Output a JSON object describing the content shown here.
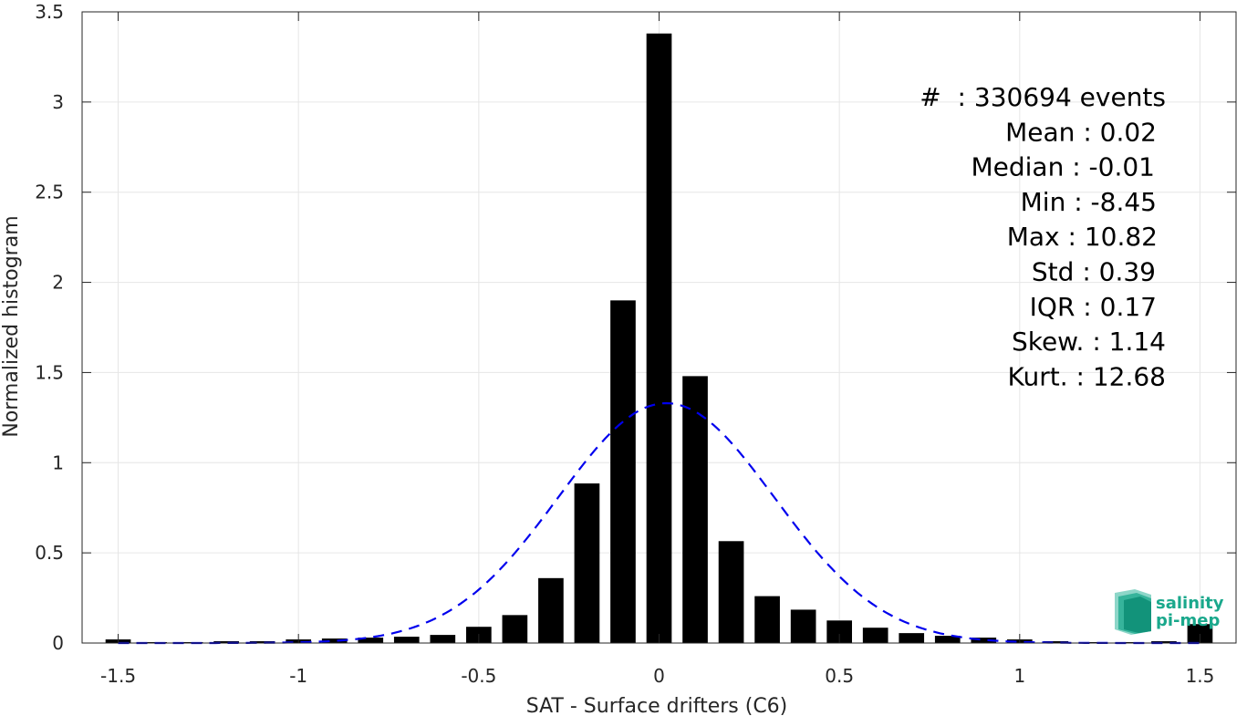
{
  "chart_data": {
    "type": "bar",
    "xlabel": "SAT - Surface drifters (C6)",
    "ylabel": "Normalized histogram",
    "xlim": [
      -1.6,
      1.6
    ],
    "ylim": [
      0,
      3.5
    ],
    "grid": true,
    "x_ticks": [
      -1.5,
      -1,
      -0.5,
      0,
      0.5,
      1,
      1.5
    ],
    "x_tick_labels": [
      "-1.5",
      "-1",
      "-0.5",
      "0",
      "0.5",
      "1",
      "1.5"
    ],
    "y_ticks": [
      0,
      0.5,
      1,
      1.5,
      2,
      2.5,
      3,
      3.5
    ],
    "y_tick_labels": [
      "0",
      "0.5",
      "1",
      "1.5",
      "2",
      "2.5",
      "3",
      "3.5"
    ],
    "bin_width": 0.1,
    "bar_color": "#000000",
    "series": [
      {
        "type": "bar",
        "x": [
          -1.5,
          -1.4,
          -1.3,
          -1.2,
          -1.1,
          -1.0,
          -0.9,
          -0.8,
          -0.7,
          -0.6,
          -0.5,
          -0.4,
          -0.3,
          -0.2,
          -0.1,
          0.0,
          0.1,
          0.2,
          0.3,
          0.4,
          0.5,
          0.6,
          0.7,
          0.8,
          0.9,
          1.0,
          1.1,
          1.2,
          1.3,
          1.4,
          1.5
        ],
        "values": [
          0.02,
          0.005,
          0.005,
          0.01,
          0.01,
          0.02,
          0.025,
          0.03,
          0.035,
          0.045,
          0.09,
          0.155,
          0.36,
          0.885,
          1.9,
          3.38,
          1.48,
          0.565,
          0.26,
          0.185,
          0.125,
          0.085,
          0.055,
          0.04,
          0.03,
          0.02,
          0.01,
          0.005,
          0.005,
          0.01,
          0.105
        ]
      },
      {
        "type": "line",
        "style": "dashed",
        "color": "#0000ee",
        "mean": 0.02,
        "std": 0.3,
        "peak": 1.33
      }
    ],
    "annotations": [
      "#  : 330694 events",
      "Mean : 0.02",
      "Median : -0.01",
      "Min : -8.45",
      "Max : 10.82",
      "Std : 0.39",
      "IQR : 0.17",
      "Skew. : 1.14",
      "Kurt. : 12.68"
    ]
  },
  "logo": {
    "line1": "salinity",
    "line2": "pi-mep",
    "color": "#1aa88c"
  }
}
